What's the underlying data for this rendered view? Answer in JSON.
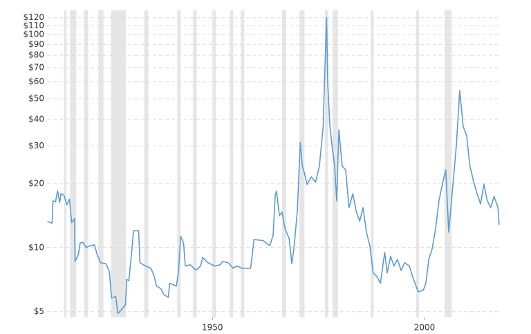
{
  "chart_data": {
    "type": "line",
    "log_y": true,
    "grid": true,
    "xlim": [
      1911,
      2017.6
    ],
    "xticks": [
      1950,
      2000
    ],
    "ylim": [
      4.7,
      130
    ],
    "yticks": [
      {
        "value": 5,
        "label": "$5"
      },
      {
        "value": 10,
        "label": "$10"
      },
      {
        "value": 20,
        "label": "$20"
      },
      {
        "value": 30,
        "label": "$30"
      },
      {
        "value": 40,
        "label": "$40"
      },
      {
        "value": 50,
        "label": "$50"
      },
      {
        "value": 60,
        "label": "$60"
      },
      {
        "value": 70,
        "label": "$70"
      },
      {
        "value": 80,
        "label": "$80"
      },
      {
        "value": 90,
        "label": "$90"
      },
      {
        "value": 100,
        "label": "$100"
      },
      {
        "value": 110,
        "label": "$110"
      },
      {
        "value": 120,
        "label": "$120"
      }
    ],
    "recessions": [
      [
        1915.0,
        1915.6
      ],
      [
        1916.4,
        1917.9
      ],
      [
        1919.7,
        1920.7
      ],
      [
        1923.1,
        1924.3
      ],
      [
        1926.1,
        1929.6
      ],
      [
        1933.9,
        1934.9
      ],
      [
        1941.7,
        1942.5
      ],
      [
        1945.4,
        1946.3
      ],
      [
        1950.0,
        1950.8
      ],
      [
        1954.1,
        1954.9
      ],
      [
        1956.7,
        1957.5
      ],
      [
        1966.4,
        1967.4
      ],
      [
        1970.5,
        1971.7
      ],
      [
        1976.5,
        1977.3
      ],
      [
        1978.3,
        1979.6
      ],
      [
        1987.3,
        1988.0
      ],
      [
        1998.0,
        1998.7
      ],
      [
        2004.7,
        2006.4
      ]
    ],
    "recession_color": "#e6e6e6",
    "series": [
      {
        "color": "#5b9bd5",
        "x": [
          1911.1,
          1912.2,
          1912.4,
          1913.0,
          1913.5,
          1914.0,
          1914.3,
          1915.0,
          1915.7,
          1916.3,
          1916.8,
          1917.5,
          1917.6,
          1918.4,
          1918.8,
          1919.5,
          1920.2,
          1921.2,
          1922.2,
          1922.8,
          1923.6,
          1924.9,
          1925.7,
          1926.2,
          1927.2,
          1927.7,
          1928.5,
          1929.5,
          1929.8,
          1930.3,
          1930.9,
          1931.4,
          1932.6,
          1932.9,
          1934.2,
          1935.5,
          1936.3,
          1936.8,
          1937.9,
          1938.6,
          1939.6,
          1939.9,
          1941.5,
          1942.0,
          1942.5,
          1943.2,
          1943.6,
          1944.8,
          1945.9,
          1946.4,
          1947.2,
          1947.7,
          1948.9,
          1950.5,
          1951.8,
          1952.4,
          1953.7,
          1954.9,
          1955.7,
          1957.0,
          1959.0,
          1959.8,
          1961.9,
          1963.5,
          1964.3,
          1964.8,
          1965.1,
          1965.8,
          1966.4,
          1967.1,
          1968.1,
          1968.7,
          1969.2,
          1970.0,
          1970.7,
          1971.2,
          1971.7,
          1972.3,
          1973.3,
          1974.3,
          1975.2,
          1976.1,
          1976.5,
          1976.9,
          1977.2,
          1977.7,
          1978.2,
          1978.8,
          1979.3,
          1979.8,
          1980.6,
          1981.4,
          1982.2,
          1983.1,
          1983.9,
          1984.7,
          1985.5,
          1986.3,
          1987.1,
          1987.9,
          1988.8,
          1989.6,
          1990.6,
          1991.2,
          1992.0,
          1992.8,
          1993.6,
          1994.5,
          1995.3,
          1996.4,
          1997.2,
          1998.5,
          1999.7,
          2000.3,
          2001.0,
          2001.8,
          2002.6,
          2003.4,
          2004.2,
          2005.0,
          2005.7,
          2006.7,
          2007.5,
          2008.3,
          2009.1,
          2009.9,
          2010.7,
          2011.6,
          2012.4,
          2013.2,
          2014.0,
          2014.8,
          2015.6,
          2016.4,
          2017.3,
          2017.6
        ],
        "values": [
          13.3,
          13.0,
          16.6,
          16.4,
          18.5,
          16.3,
          17.9,
          17.6,
          15.9,
          16.9,
          13.1,
          13.7,
          8.6,
          9.3,
          10.5,
          10.6,
          10.0,
          10.2,
          10.3,
          9.3,
          8.5,
          8.4,
          7.7,
          5.8,
          5.9,
          4.9,
          5.1,
          5.4,
          7.1,
          7.0,
          9.3,
          12.0,
          12.0,
          8.5,
          8.2,
          8.0,
          7.3,
          6.6,
          6.4,
          6.0,
          5.85,
          6.8,
          6.6,
          7.7,
          11.3,
          10.5,
          8.2,
          8.3,
          7.9,
          7.9,
          8.2,
          9.0,
          8.5,
          8.2,
          8.3,
          8.6,
          8.5,
          8.0,
          8.2,
          8.0,
          8.0,
          10.9,
          10.8,
          10.2,
          11.4,
          17.6,
          18.4,
          14.1,
          14.7,
          12.3,
          11.0,
          8.4,
          9.9,
          14.8,
          31.2,
          24.1,
          22.3,
          19.8,
          21.5,
          20.3,
          24.1,
          37,
          67.9,
          120,
          58.5,
          37,
          30.1,
          24.1,
          16.6,
          35.7,
          24.1,
          23.2,
          15.4,
          17.9,
          14.8,
          13.3,
          15.4,
          11.8,
          10.2,
          7.6,
          7.3,
          6.8,
          9.5,
          7.6,
          9.1,
          8.2,
          8.8,
          7.8,
          8.5,
          8.2,
          7.3,
          6.2,
          6.3,
          6.8,
          8.8,
          9.9,
          12.3,
          16.6,
          19.8,
          23.2,
          11.8,
          19.8,
          30.1,
          54.6,
          37,
          33.7,
          24.1,
          20.3,
          17.9,
          16.0,
          19.8,
          16.6,
          15.4,
          17.4,
          15.4,
          12.8
        ]
      }
    ]
  }
}
